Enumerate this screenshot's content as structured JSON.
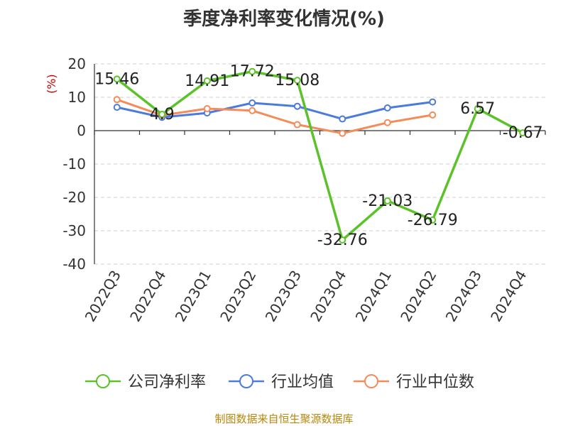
{
  "title": "季度净利率变化情况(%)",
  "source": "制图数据来自恒生聚源数据库",
  "colors": {
    "company": "#5cc229",
    "industry_avg": "#4b7bdd",
    "industry_median": "#f48c5a",
    "grid": "#cccccc",
    "axis": "#333333",
    "unit_label": "#cc0000"
  },
  "chart_data": {
    "type": "line",
    "title": "季度净利率变化情况(%)",
    "ylabel": "(%)",
    "xlabel": "",
    "ylim": [
      -40,
      20
    ],
    "yticks": [
      20,
      10,
      0,
      -10,
      -20,
      -30,
      -40
    ],
    "grid": "horizontal dashed",
    "legend_position": "bottom",
    "categories": [
      "2022Q3",
      "2022Q4",
      "2023Q1",
      "2023Q2",
      "2023Q3",
      "2023Q4",
      "2024Q1",
      "2024Q2",
      "2024Q3",
      "2024Q4"
    ],
    "series": [
      {
        "name": "公司净利率",
        "color": "#5cc229",
        "values": [
          15.46,
          4.9,
          14.91,
          17.72,
          15.08,
          -32.76,
          -21.03,
          -26.79,
          6.57,
          -0.67
        ],
        "labels": [
          "15.46",
          "4.9",
          "14.91",
          "17.72",
          "15.08",
          "-32.76",
          "-21.03",
          "-26.79",
          "6.57",
          "-0.67"
        ]
      },
      {
        "name": "行业均值",
        "color": "#4b7bdd",
        "values": [
          7.0,
          4.0,
          5.3,
          8.3,
          7.3,
          3.5,
          6.8,
          8.6,
          null,
          null
        ]
      },
      {
        "name": "行业中位数",
        "color": "#f48c5a",
        "values": [
          9.3,
          4.6,
          6.6,
          6.0,
          1.8,
          -0.8,
          2.4,
          4.7,
          null,
          null
        ]
      }
    ]
  }
}
